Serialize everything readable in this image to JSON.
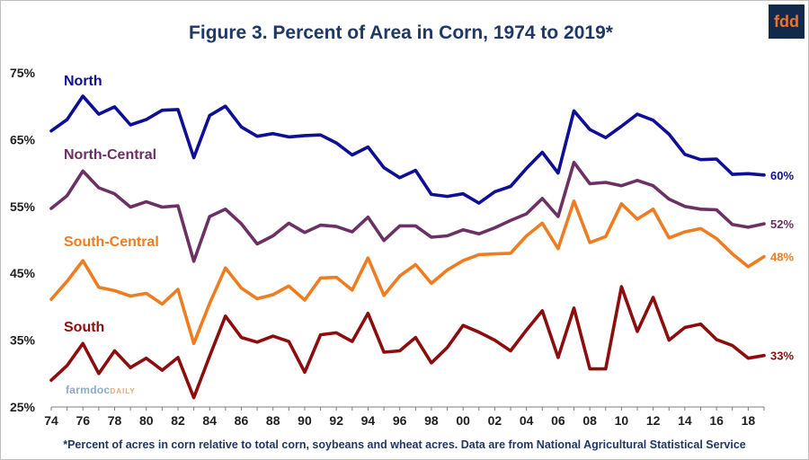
{
  "header": {
    "title": "Figure 3. Percent of Area in Corn, 1974 to 2019*",
    "logo_text": "fdd"
  },
  "watermark": {
    "main": "farmdoc",
    "sub": "DAILY"
  },
  "footnote": "*Percent of acres in corn relative to total corn, soybeans and wheat acres.  Data are from National Agricultural Statistical Service",
  "chart_data": {
    "type": "line",
    "title": "Figure 3. Percent of Area in Corn, 1974 to 2019*",
    "xlabel": "",
    "ylabel": "",
    "x": [
      1974,
      1975,
      1976,
      1977,
      1978,
      1979,
      1980,
      1981,
      1982,
      1983,
      1984,
      1985,
      1986,
      1987,
      1988,
      1989,
      1990,
      1991,
      1992,
      1993,
      1994,
      1995,
      1996,
      1997,
      1998,
      1999,
      2000,
      2001,
      2002,
      2003,
      2004,
      2005,
      2006,
      2007,
      2008,
      2009,
      2010,
      2011,
      2012,
      2013,
      2014,
      2015,
      2016,
      2017,
      2018,
      2019
    ],
    "xlim": [
      1974,
      2019
    ],
    "ylim": [
      25,
      75
    ],
    "y_ticks": [
      25,
      35,
      45,
      55,
      65,
      75
    ],
    "y_tick_labels": [
      "25%",
      "35%",
      "45%",
      "55%",
      "65%",
      "75%"
    ],
    "x_tick_labels": [
      "74",
      "76",
      "78",
      "80",
      "82",
      "84",
      "86",
      "88",
      "90",
      "92",
      "94",
      "96",
      "98",
      "00",
      "02",
      "04",
      "06",
      "08",
      "10",
      "12",
      "14",
      "16",
      "18"
    ],
    "x_tick_years": [
      1974,
      1976,
      1978,
      1980,
      1982,
      1984,
      1986,
      1988,
      1990,
      1992,
      1994,
      1996,
      1998,
      2000,
      2002,
      2004,
      2006,
      2008,
      2010,
      2012,
      2014,
      2016,
      2018
    ],
    "grid": false,
    "legend": "none (series labeled directly)",
    "series": [
      {
        "name": "North",
        "color": "#0e0e96",
        "end_label": "60%",
        "values": [
          66.3,
          68.0,
          71.5,
          68.8,
          69.9,
          67.2,
          68.0,
          69.4,
          69.5,
          62.3,
          68.6,
          70.0,
          66.9,
          65.5,
          65.9,
          65.4,
          65.6,
          65.7,
          64.5,
          62.7,
          63.9,
          60.8,
          59.3,
          60.4,
          56.8,
          56.5,
          56.9,
          55.5,
          57.2,
          58.0,
          60.7,
          63.1,
          60.0,
          69.3,
          66.5,
          65.3,
          67.0,
          68.8,
          67.9,
          65.8,
          62.8,
          62.0,
          62.1,
          59.8,
          59.9,
          59.7
        ]
      },
      {
        "name": "North-Central",
        "color": "#6b3064",
        "end_label": "52%",
        "values": [
          54.7,
          56.6,
          60.3,
          57.8,
          56.9,
          54.9,
          55.7,
          54.9,
          55.1,
          46.8,
          53.5,
          54.6,
          52.4,
          49.4,
          50.6,
          52.5,
          51.1,
          52.2,
          52.0,
          51.2,
          53.4,
          49.9,
          52.1,
          52.1,
          50.4,
          50.6,
          51.5,
          50.9,
          51.8,
          52.9,
          53.9,
          56.2,
          53.5,
          61.6,
          58.4,
          58.6,
          58.1,
          58.9,
          58.1,
          56.1,
          55.0,
          54.6,
          54.5,
          52.3,
          51.9,
          52.4
        ]
      },
      {
        "name": "South-Central",
        "color": "#ee7d22",
        "end_label": "48%",
        "values": [
          41.1,
          43.8,
          46.9,
          42.9,
          42.4,
          41.6,
          42.0,
          40.4,
          42.6,
          34.5,
          40.5,
          45.8,
          42.8,
          41.2,
          41.8,
          43.1,
          41.0,
          44.3,
          44.4,
          42.5,
          47.3,
          41.7,
          44.6,
          46.3,
          43.5,
          45.5,
          46.9,
          47.8,
          47.9,
          48.0,
          50.6,
          52.5,
          48.7,
          55.8,
          49.6,
          50.5,
          55.4,
          53.1,
          54.6,
          50.3,
          51.2,
          51.7,
          50.2,
          47.9,
          46.0,
          47.5
        ]
      },
      {
        "name": "South",
        "color": "#8b0d0d",
        "end_label": "33%",
        "values": [
          29.0,
          31.2,
          34.5,
          30.0,
          33.4,
          30.9,
          32.3,
          30.5,
          32.4,
          26.4,
          32.6,
          38.6,
          35.4,
          34.7,
          35.6,
          34.8,
          30.2,
          35.8,
          36.1,
          34.8,
          39.0,
          33.2,
          33.4,
          35.4,
          31.6,
          33.9,
          37.2,
          36.2,
          35.0,
          33.4,
          36.5,
          39.4,
          32.4,
          39.8,
          30.7,
          30.7,
          43.0,
          36.3,
          41.4,
          35.0,
          36.9,
          37.4,
          35.1,
          34.2,
          32.3,
          32.7
        ]
      }
    ]
  }
}
